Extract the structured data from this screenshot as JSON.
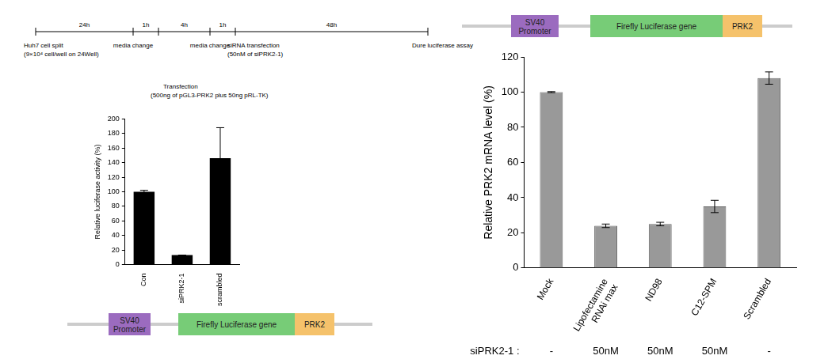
{
  "timeline": {
    "durations": [
      "24h",
      "1h",
      "4h",
      "1h",
      "48h"
    ],
    "events": [
      {
        "label": [
          "Huh7 cell split",
          "(9×10⁴ cell/well on 24Well)"
        ]
      },
      {
        "label": [
          "media change"
        ]
      },
      {
        "label": [
          "Transfection",
          "(500ng of pGL3-PRK2 plus 50ng pRL-TK)"
        ]
      },
      {
        "label": [
          "media change"
        ]
      },
      {
        "label": [
          "siRNA transfection",
          "(50nM of siPRK2-1)"
        ]
      },
      {
        "label": [
          "Dure luciferase assay"
        ]
      }
    ]
  },
  "constructs": [
    {
      "parts": [
        {
          "label": [
            "SV40",
            "Promoter"
          ],
          "color": "#9b6bbf"
        },
        {
          "label": [
            "Firefly Luciferase gene"
          ],
          "color": "#77cc77"
        },
        {
          "label": [
            "PRK2"
          ],
          "color": "#f5c26b"
        }
      ]
    },
    {
      "parts": [
        {
          "label": [
            "SV40",
            "Promoter"
          ],
          "color": "#9b6bbf"
        },
        {
          "label": [
            "Firefly Luciferase gene"
          ],
          "color": "#77cc77"
        },
        {
          "label": [
            "PRK2"
          ],
          "color": "#f5c26b"
        }
      ]
    }
  ],
  "chart_data": [
    {
      "type": "bar",
      "y_label": "Relative luciferase activity (%)",
      "categories": [
        "Con",
        "siPRK2-1",
        "scrambled"
      ],
      "values": [
        100,
        13,
        146
      ],
      "errors": [
        2,
        0,
        42
      ],
      "color": "#000000",
      "ylim": [
        0,
        200
      ],
      "yticks": [
        0,
        20,
        40,
        60,
        80,
        100,
        120,
        140,
        160,
        180,
        200
      ],
      "grid": false
    },
    {
      "type": "bar",
      "y_label": "Relative PRK2 mRNA level (%)",
      "categories": [
        "Mock",
        "Lipofectamine RNAi max",
        "ND98",
        "C12-SPM",
        "Scrambled"
      ],
      "values": [
        100,
        24,
        25,
        35,
        108
      ],
      "errors": [
        0.3,
        1,
        1,
        3.5,
        3.5
      ],
      "color": "#999999",
      "ylim": [
        0,
        120
      ],
      "yticks": [
        0,
        20,
        40,
        60,
        80,
        100,
        120
      ],
      "grid": false,
      "condition_row": {
        "label": "siPRK2-1 :",
        "values": [
          "-",
          "50nM",
          "50nM",
          "50nM",
          "-"
        ]
      }
    }
  ]
}
